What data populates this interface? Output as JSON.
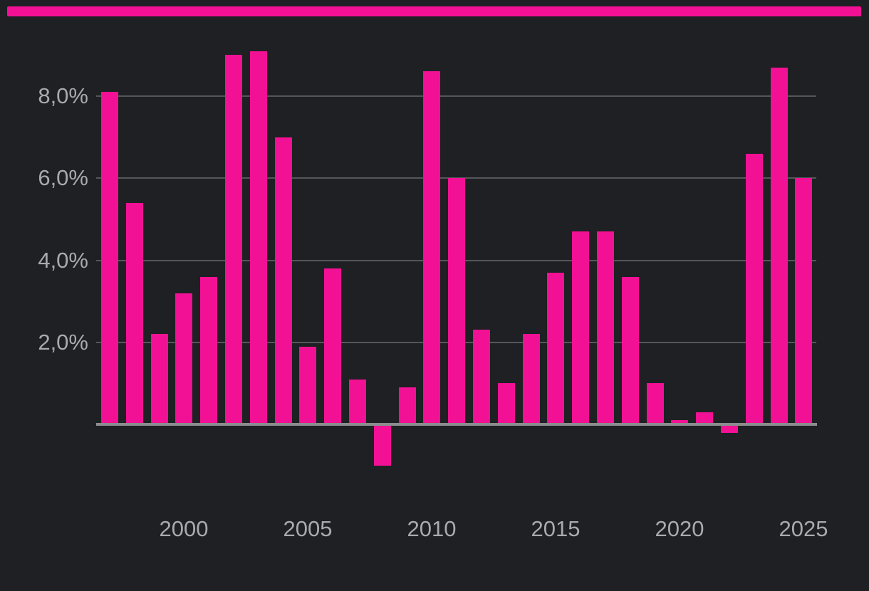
{
  "page": {
    "background": "#1f2023"
  },
  "accent_bar": {
    "color": "#f21194"
  },
  "chart_data": {
    "type": "bar",
    "title": "",
    "categories": [
      "1997",
      "1998",
      "1999",
      "2000",
      "2001",
      "2002",
      "2003",
      "2004",
      "2005",
      "2006",
      "2007",
      "2008",
      "2009",
      "2010",
      "2011",
      "2012",
      "2013",
      "2014",
      "2015",
      "2016",
      "2017",
      "2018",
      "2019",
      "2020",
      "2021",
      "2022",
      "2023",
      "2024",
      "2025"
    ],
    "values": [
      8.1,
      5.4,
      2.2,
      3.2,
      3.6,
      9.0,
      9.1,
      7.0,
      1.9,
      3.8,
      1.1,
      -1.0,
      0.9,
      8.6,
      6.0,
      2.3,
      1.0,
      2.2,
      3.7,
      4.7,
      4.7,
      3.6,
      1.0,
      0.1,
      0.3,
      -0.2,
      6.6,
      8.7,
      6.0
    ],
    "unit": "%",
    "value_format": "comma-decimal",
    "bar_color": "#f21194",
    "y_ticks": [
      {
        "value": 2,
        "label": "2,0%"
      },
      {
        "value": 4,
        "label": "4,0%"
      },
      {
        "value": 6,
        "label": "6,0%"
      },
      {
        "value": 8,
        "label": "8,0%"
      }
    ],
    "x_ticks": [
      {
        "year": 2000,
        "label": "2000"
      },
      {
        "year": 2005,
        "label": "2005"
      },
      {
        "year": 2010,
        "label": "2010"
      },
      {
        "year": 2015,
        "label": "2015"
      },
      {
        "year": 2020,
        "label": "2020"
      },
      {
        "year": 2025,
        "label": "2025"
      }
    ],
    "ylim": [
      -1.6,
      9.6
    ],
    "grid": "horizontal-only",
    "legend": "none",
    "label_color": "#a8aaad",
    "gridline_color": "#55565a",
    "axis_line_color": "#8b8c8e"
  }
}
